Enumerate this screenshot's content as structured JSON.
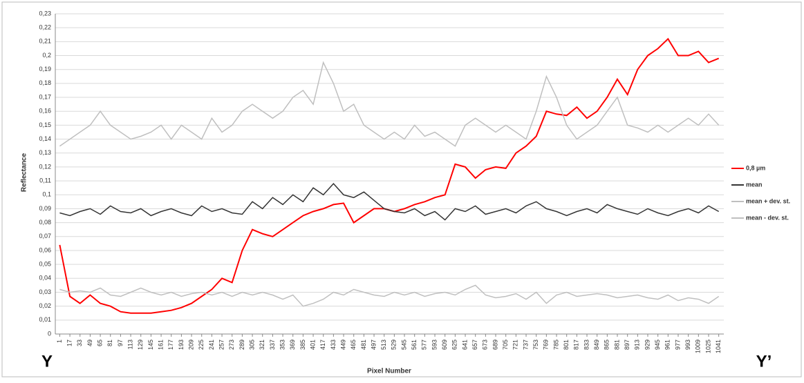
{
  "chart_data": {
    "type": "line",
    "y_label": "Reflectance",
    "x_label": "Pixel Number",
    "annotations": [
      "Y",
      "Y’"
    ],
    "x": [
      1,
      17,
      33,
      49,
      65,
      81,
      97,
      113,
      129,
      145,
      161,
      177,
      193,
      209,
      225,
      241,
      257,
      273,
      289,
      305,
      321,
      337,
      353,
      369,
      385,
      401,
      417,
      433,
      449,
      465,
      481,
      497,
      513,
      529,
      545,
      561,
      577,
      593,
      609,
      625,
      641,
      657,
      673,
      689,
      705,
      721,
      737,
      753,
      769,
      785,
      801,
      817,
      833,
      849,
      865,
      881,
      897,
      913,
      929,
      945,
      961,
      977,
      993,
      1009,
      1025,
      1041
    ],
    "xlim": [
      -6,
      1049
    ],
    "xticks": [
      1,
      17,
      33,
      49,
      65,
      81,
      97,
      113,
      129,
      145,
      161,
      177,
      193,
      209,
      225,
      241,
      257,
      273,
      289,
      305,
      321,
      337,
      353,
      369,
      385,
      401,
      417,
      433,
      449,
      465,
      481,
      497,
      513,
      529,
      545,
      561,
      577,
      593,
      609,
      625,
      641,
      657,
      673,
      689,
      705,
      721,
      737,
      753,
      769,
      785,
      801,
      817,
      833,
      849,
      865,
      881,
      897,
      913,
      929,
      945,
      961,
      977,
      993,
      1009,
      1025,
      1041
    ],
    "ylim": [
      0,
      0.23
    ],
    "yticks": [
      0,
      {
        "value": 0.01,
        "label": "0,01"
      },
      {
        "value": 0.02,
        "label": "0,02"
      },
      {
        "value": 0.03,
        "label": "0,03"
      },
      {
        "value": 0.04,
        "label": "0,04"
      },
      {
        "value": 0.05,
        "label": "0,05"
      },
      {
        "value": 0.06,
        "label": "0,06"
      },
      {
        "value": 0.07,
        "label": "0,07"
      },
      {
        "value": 0.08,
        "label": "0,08"
      },
      {
        "value": 0.09,
        "label": "0,09"
      },
      {
        "value": 0.1,
        "label": "0,1"
      },
      {
        "value": 0.11,
        "label": "0,11"
      },
      {
        "value": 0.12,
        "label": "0,12"
      },
      {
        "value": 0.13,
        "label": "0,13"
      },
      {
        "value": 0.14,
        "label": "0,14"
      },
      {
        "value": 0.15,
        "label": "0,15"
      },
      {
        "value": 0.16,
        "label": "0,16"
      },
      {
        "value": 0.17,
        "label": "0,17"
      },
      {
        "value": 0.18,
        "label": "0,18"
      },
      {
        "value": 0.19,
        "label": "0,19"
      },
      {
        "value": 0.2,
        "label": "0,2"
      },
      {
        "value": 0.21,
        "label": "0,21"
      },
      {
        "value": 0.22,
        "label": "0,22"
      },
      {
        "value": 0.23,
        "label": "0,23"
      }
    ],
    "grid": true,
    "legend": "right",
    "series": [
      {
        "name": "0,8 µm",
        "color": "#ff0000",
        "values": [
          0.064,
          0.027,
          0.022,
          0.028,
          0.022,
          0.02,
          0.016,
          0.015,
          0.015,
          0.015,
          0.016,
          0.017,
          0.019,
          0.022,
          0.027,
          0.032,
          0.04,
          0.037,
          0.06,
          0.075,
          0.072,
          0.07,
          0.075,
          0.08,
          0.085,
          0.088,
          0.09,
          0.093,
          0.094,
          0.08,
          0.085,
          0.09,
          0.09,
          0.088,
          0.09,
          0.093,
          0.095,
          0.098,
          0.1,
          0.122,
          0.12,
          0.112,
          0.118,
          0.12,
          0.119,
          0.13,
          0.135,
          0.142,
          0.16,
          0.158,
          0.157,
          0.163,
          0.155,
          0.16,
          0.17,
          0.183,
          0.172,
          0.19,
          0.2,
          0.205,
          0.212,
          0.2,
          0.2,
          0.203,
          0.195,
          0.198
        ]
      },
      {
        "name": "mean",
        "color": "#333333",
        "values": [
          0.087,
          0.085,
          0.088,
          0.09,
          0.086,
          0.092,
          0.088,
          0.087,
          0.09,
          0.085,
          0.088,
          0.09,
          0.087,
          0.085,
          0.092,
          0.088,
          0.09,
          0.087,
          0.086,
          0.095,
          0.09,
          0.098,
          0.093,
          0.1,
          0.095,
          0.105,
          0.1,
          0.108,
          0.1,
          0.098,
          0.102,
          0.096,
          0.09,
          0.088,
          0.087,
          0.09,
          0.085,
          0.088,
          0.082,
          0.09,
          0.088,
          0.092,
          0.086,
          0.088,
          0.09,
          0.087,
          0.092,
          0.095,
          0.09,
          0.088,
          0.085,
          0.088,
          0.09,
          0.087,
          0.093,
          0.09,
          0.088,
          0.086,
          0.09,
          0.087,
          0.085,
          0.088,
          0.09,
          0.087,
          0.092,
          0.088
        ]
      },
      {
        "name": "mean + dev. st.",
        "color": "#bfbfbf",
        "values": [
          0.135,
          0.14,
          0.145,
          0.15,
          0.16,
          0.15,
          0.145,
          0.14,
          0.142,
          0.145,
          0.15,
          0.14,
          0.15,
          0.145,
          0.14,
          0.155,
          0.145,
          0.15,
          0.16,
          0.165,
          0.16,
          0.155,
          0.16,
          0.17,
          0.175,
          0.165,
          0.195,
          0.18,
          0.16,
          0.165,
          0.15,
          0.145,
          0.14,
          0.145,
          0.14,
          0.15,
          0.142,
          0.145,
          0.14,
          0.135,
          0.15,
          0.155,
          0.15,
          0.145,
          0.15,
          0.145,
          0.14,
          0.16,
          0.185,
          0.17,
          0.15,
          0.14,
          0.145,
          0.15,
          0.16,
          0.17,
          0.15,
          0.148,
          0.145,
          0.15,
          0.145,
          0.15,
          0.155,
          0.15,
          0.158,
          0.15
        ]
      },
      {
        "name": "mean - dev. st.",
        "color": "#bfbfbf",
        "values": [
          0.032,
          0.03,
          0.031,
          0.03,
          0.033,
          0.028,
          0.027,
          0.03,
          0.033,
          0.03,
          0.028,
          0.03,
          0.027,
          0.029,
          0.03,
          0.028,
          0.03,
          0.027,
          0.03,
          0.028,
          0.03,
          0.028,
          0.025,
          0.028,
          0.02,
          0.022,
          0.025,
          0.03,
          0.028,
          0.032,
          0.03,
          0.028,
          0.027,
          0.03,
          0.028,
          0.03,
          0.027,
          0.029,
          0.03,
          0.028,
          0.032,
          0.035,
          0.028,
          0.026,
          0.027,
          0.029,
          0.025,
          0.03,
          0.022,
          0.028,
          0.03,
          0.027,
          0.028,
          0.029,
          0.028,
          0.026,
          0.027,
          0.028,
          0.026,
          0.025,
          0.028,
          0.024,
          0.026,
          0.025,
          0.022,
          0.027
        ]
      }
    ]
  }
}
